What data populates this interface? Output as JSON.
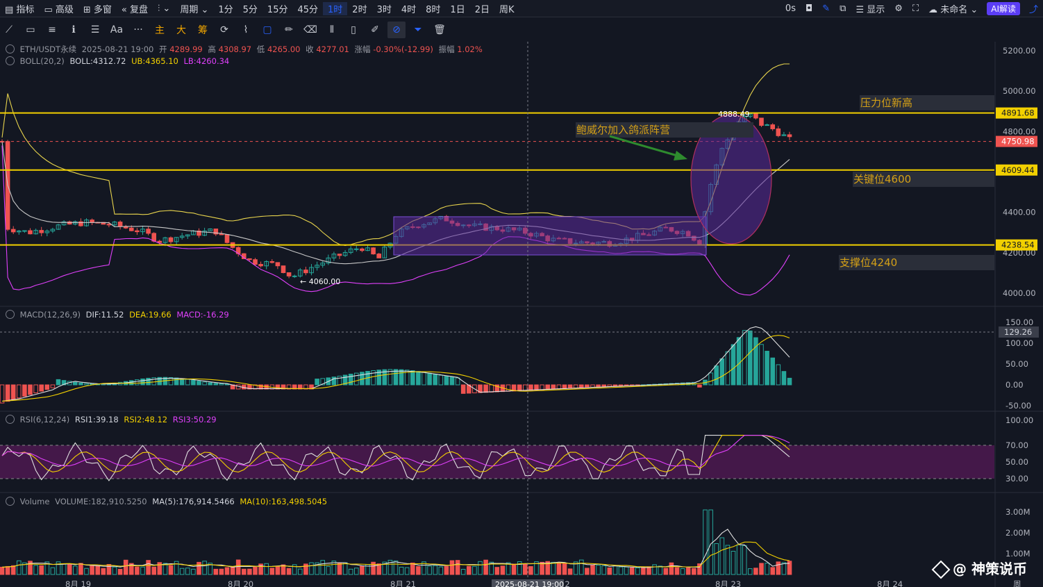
{
  "topbar": {
    "items": [
      "指标",
      "高级",
      "多窗",
      "复盘",
      "周期"
    ],
    "intervals": [
      "1分",
      "5分",
      "15分",
      "45分",
      "1时",
      "2时",
      "3时",
      "4时",
      "8时",
      "1日",
      "2日",
      "周K"
    ],
    "active_interval": "1时",
    "right": {
      "delay": "0s",
      "display": "显示",
      "unnamed": "未命名",
      "ai": "AI解读"
    }
  },
  "toolbar": {
    "icons": [
      "trend-line-icon",
      "rectangle-icon",
      "horizontal-lines-icon",
      "fib-icon",
      "parallel-lines-icon",
      "text-icon",
      "more-icon",
      "main-chart-icon",
      "big-icon",
      "chip-icon",
      "magnet-icon",
      "brush-icon",
      "path-icon",
      "pencil-icon",
      "eraser-icon",
      "bars-icon",
      "ruler-icon",
      "note-icon",
      "lock-icon",
      "filter-icon",
      "trash-icon"
    ],
    "labels": {
      "main": "主",
      "big": "大",
      "chip": "筹",
      "text": "Aa",
      "more": "···"
    }
  },
  "legend": {
    "symbol": "ETH/USDT永续",
    "datetime": "2025-08-21 19:00",
    "open_label": "开",
    "open": "4289.99",
    "high_label": "高",
    "high": "4308.97",
    "low_label": "低",
    "low": "4265.00",
    "close_label": "收",
    "close": "4277.01",
    "change_label": "涨幅",
    "change": "-0.30%(-12.99)",
    "amp_label": "振幅",
    "amp": "1.02%",
    "boll": "BOLL(20,2)",
    "boll_mid": "BOLL:4312.72",
    "boll_ub": "UB:4365.10",
    "boll_lb": "LB:4260.34",
    "macd": "MACD(12,26,9)",
    "dif": "DIF:11.52",
    "dea": "DEA:19.66",
    "macd_val": "MACD:-16.29",
    "rsi": "RSI(6,12,24)",
    "rsi1": "RSI1:39.18",
    "rsi2": "RSI2:48.12",
    "rsi3": "RSI3:50.29",
    "vol": "Volume",
    "vol_val": "VOLUME:182,910.5250",
    "ma5": "MA(5):176,914.5466",
    "ma10": "MA(10):163,498.5045"
  },
  "colors": {
    "up": "#26a69a",
    "down": "#ef5350",
    "bg": "#131722",
    "yellow": "#f2d000",
    "boll_ub": "#e8d44d",
    "boll_lb": "#e040fb",
    "boll_mid": "#c8c8c8",
    "purple_box": "#5b2a9c",
    "label_bg": "#2a2e39",
    "label_text": "#d4a017"
  },
  "annotations": {
    "pressure": "压力位新高",
    "key": "关键位4600",
    "support": "支撑位4240",
    "news": "鲍威尔加入鸽派阵营",
    "high_mark": "4888.49",
    "low_mark": "← 4060.00"
  },
  "price_tags": {
    "p1": "4891.68",
    "p2": "4750.98",
    "p3": "4609.44",
    "p4": "4238.54",
    "macd_tag": "129.26"
  },
  "crosshair_time": "2025-08-21 19:00",
  "watermark": "@ 神策说币",
  "chart_data": {
    "type": "candlestick",
    "y_axis_ticks": [
      "5200.00",
      "5000.00",
      "4800.00",
      "4400.00",
      "4200.00",
      "4000.00"
    ],
    "macd_ticks": [
      "150.00",
      "100.00",
      "50.00",
      "0.00",
      "-50.00"
    ],
    "rsi_ticks": [
      "100.00",
      "70.00",
      "50.00",
      "30.00"
    ],
    "vol_ticks": [
      "3.00M",
      "2.00M",
      "1.00M"
    ],
    "x_ticks": [
      "8月 19",
      "8月 20",
      "8月 21",
      "22",
      "8月 23",
      "8月 24",
      "周"
    ],
    "horizontal_levels": [
      4891.68,
      4609.44,
      4238.54
    ],
    "dashed_level": 4750.98,
    "low_point": 4060.0,
    "high_point": 4888.49
  }
}
